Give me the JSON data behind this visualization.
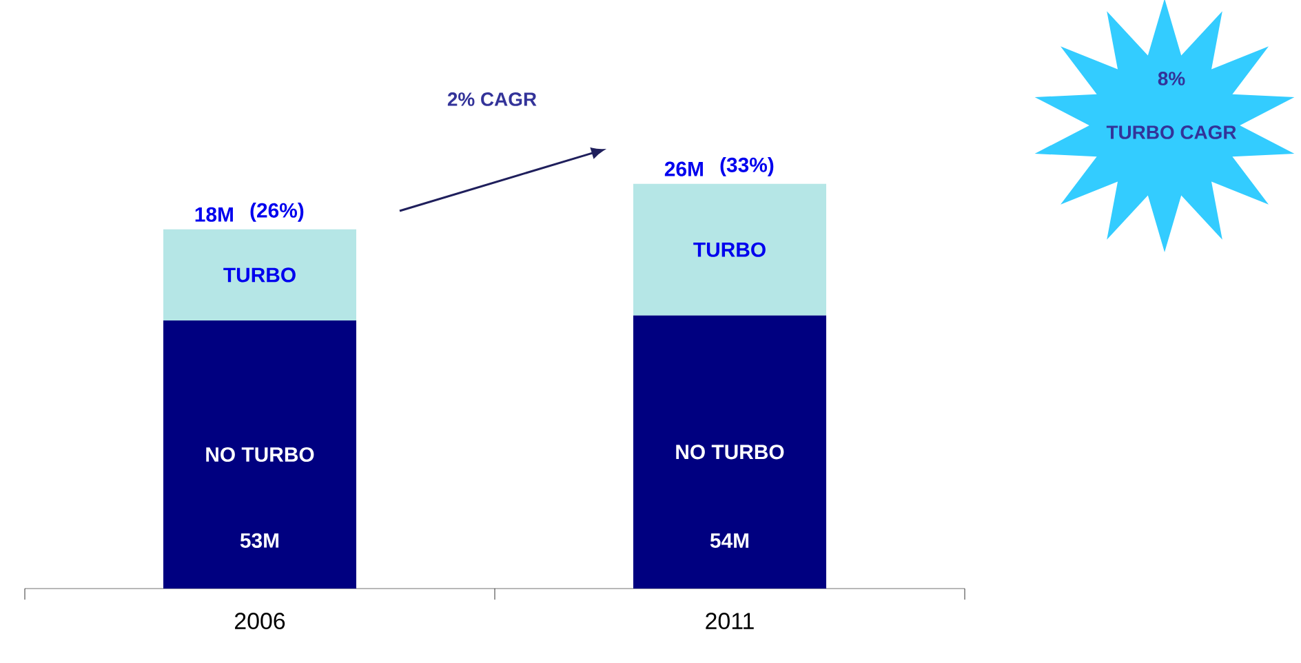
{
  "chart_data": {
    "type": "bar",
    "stacked": true,
    "categories": [
      "2006",
      "2011"
    ],
    "series": [
      {
        "name": "NO TURBO",
        "color": "#000080",
        "values": [
          53,
          54
        ],
        "value_labels": [
          "53M",
          "54M"
        ]
      },
      {
        "name": "TURBO",
        "color": "#b5e6e6",
        "values": [
          18,
          26
        ],
        "value_labels": [
          "18M",
          "26M"
        ]
      }
    ],
    "annotations": [
      "2% CAGR",
      "8%",
      "TURBO CAGR",
      {
        "text": "(26%)",
        "x": "2006",
        "y": 71
      },
      {
        "text": "(33%)",
        "x": "2011",
        "y": 80
      }
    ]
  }
}
